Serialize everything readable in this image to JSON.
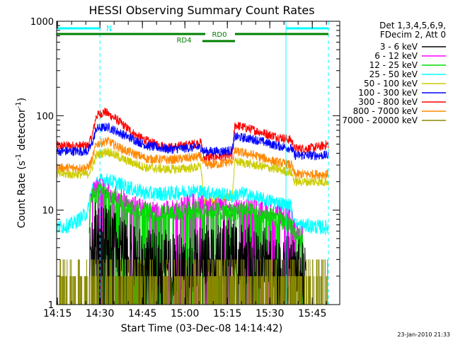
{
  "chart_data": {
    "type": "line",
    "title": "HESSI Observing Summary Count Rates",
    "xlabel": "Start Time (03-Dec-08 14:14:42)",
    "ylabel_main": "Count Rate (s",
    "ylabel_sup1": "-1",
    "ylabel_mid": " detector",
    "ylabel_sup2": "-1",
    "ylabel_end": ")",
    "y_scale": "log",
    "ylim": [
      1,
      1000
    ],
    "xlim_minutes": [
      0,
      100
    ],
    "x_ticks": [
      {
        "label": "14:15",
        "t": 0.3
      },
      {
        "label": "14:30",
        "t": 15.3
      },
      {
        "label": "14:45",
        "t": 30.3
      },
      {
        "label": "15:00",
        "t": 45.3
      },
      {
        "label": "15:15",
        "t": 60.3
      },
      {
        "label": "15:30",
        "t": 75.3
      },
      {
        "label": "15:45",
        "t": 90.3
      }
    ],
    "y_ticks": [
      {
        "label": "1",
        "v": 1
      },
      {
        "label": "10",
        "v": 10
      },
      {
        "label": "100",
        "v": 100
      },
      {
        "label": "1000",
        "v": 1000
      }
    ],
    "legend_header": [
      "Det 1,3,4,5,6,9,",
      "FDecim 2, Att 0"
    ],
    "series": [
      {
        "name": "3 - 6 keV",
        "color": "#000000"
      },
      {
        "name": "6 - 12 keV",
        "color": "#ff00ff"
      },
      {
        "name": "12 - 25 keV",
        "color": "#00dd00"
      },
      {
        "name": "25 - 50 keV",
        "color": "#00ffff"
      },
      {
        "name": "50 - 100 keV",
        "color": "#cccc00"
      },
      {
        "name": "100 - 300 keV",
        "color": "#0000ff"
      },
      {
        "name": "300 - 800 keV",
        "color": "#ff0000"
      },
      {
        "name": "800 - 7000 keV",
        "color": "#ff8800"
      },
      {
        "name": "7000 - 20000 keV",
        "color": "#888800"
      }
    ],
    "annotations": [
      {
        "label": "N",
        "color": "#00ffff"
      },
      {
        "label": "RD0",
        "color": "#008000"
      },
      {
        "label": "RD4",
        "color": "#008000"
      }
    ]
  },
  "footer": {
    "timestamp": "23-Jan-2010 21:33"
  }
}
